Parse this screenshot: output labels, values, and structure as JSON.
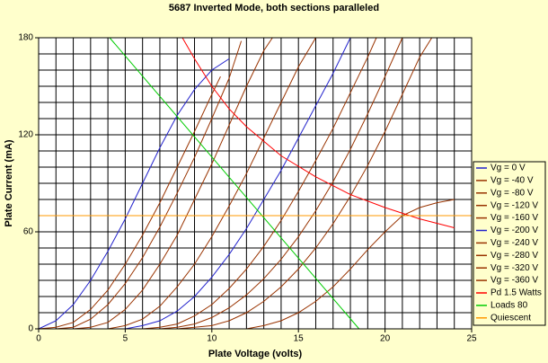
{
  "chart_data": {
    "type": "line",
    "title": "5687 Inverted Mode, both sections paralleled",
    "x_label": "Plate Voltage  (volts)",
    "y_label": "Plate Current (mA)",
    "xlim": [
      0,
      25
    ],
    "ylim": [
      0,
      180
    ],
    "xticks": [
      0,
      5,
      10,
      15,
      20,
      25
    ],
    "yticks": [
      0,
      60,
      120,
      180
    ],
    "xgrid": [
      0,
      1,
      2,
      3,
      4,
      5,
      6,
      7,
      8,
      9,
      10,
      11,
      12,
      13,
      14,
      15,
      16,
      17,
      18,
      19,
      20,
      21,
      22,
      23,
      24,
      25
    ],
    "ygrid": [
      0,
      10,
      20,
      30,
      40,
      50,
      60,
      70,
      80,
      90,
      100,
      110,
      120,
      130,
      140,
      150,
      160,
      170,
      180
    ],
    "legend": "right",
    "series": [
      {
        "name": "Vg = 0 V",
        "color": "#2222cc",
        "x": [
          0,
          1,
          2,
          3,
          4,
          5,
          6,
          7,
          8,
          9,
          10,
          11
        ],
        "values": [
          0,
          5,
          15,
          30,
          48,
          68,
          90,
          112,
          132,
          148,
          160,
          167
        ]
      },
      {
        "name": "Vg = -40 V",
        "color": "#993300",
        "x": [
          0,
          1,
          2,
          3,
          4,
          5,
          6,
          7,
          8,
          9,
          10,
          10.5
        ],
        "values": [
          0,
          1,
          4,
          12,
          24,
          40,
          58,
          78,
          100,
          122,
          145,
          156
        ]
      },
      {
        "name": "Vg = -80 V",
        "color": "#993300",
        "x": [
          1,
          2,
          3,
          4,
          5,
          6,
          7,
          8,
          9,
          10,
          11,
          11.7
        ],
        "values": [
          0,
          1,
          6,
          15,
          28,
          44,
          63,
          84,
          106,
          130,
          155,
          178
        ]
      },
      {
        "name": "Vg = -120 V",
        "color": "#993300",
        "x": [
          2,
          3,
          4,
          5,
          6,
          7,
          8,
          9,
          10,
          11,
          12,
          13,
          13.5
        ],
        "values": [
          0,
          1,
          4,
          12,
          24,
          40,
          58,
          80,
          102,
          126,
          150,
          172,
          180
        ]
      },
      {
        "name": "Vg = -160 V",
        "color": "#993300",
        "x": [
          4,
          5,
          6,
          7,
          8,
          9,
          10,
          11,
          12,
          13,
          14,
          15,
          16
        ],
        "values": [
          0,
          2,
          6,
          14,
          26,
          40,
          57,
          76,
          96,
          118,
          140,
          162,
          180
        ]
      },
      {
        "name": "Vg = -200 V",
        "color": "#2222cc",
        "x": [
          5,
          6,
          7,
          8,
          9,
          10,
          11,
          12,
          13,
          14,
          15,
          16,
          17,
          18
        ],
        "values": [
          0,
          2,
          5,
          11,
          20,
          32,
          46,
          62,
          80,
          98,
          118,
          138,
          158,
          180
        ]
      },
      {
        "name": "Vg = -240 V",
        "color": "#993300",
        "x": [
          6,
          7,
          8,
          9,
          10,
          11,
          12,
          13,
          14,
          15,
          16,
          17,
          18,
          19,
          19.5
        ],
        "values": [
          0,
          1,
          3,
          8,
          15,
          25,
          37,
          51,
          67,
          85,
          104,
          124,
          146,
          168,
          180
        ]
      },
      {
        "name": "Vg = -280 V",
        "color": "#993300",
        "x": [
          7,
          8,
          9,
          10,
          11,
          12,
          13,
          14,
          15,
          16,
          17,
          18,
          19,
          20,
          21
        ],
        "values": [
          0,
          1,
          3,
          7,
          13,
          21,
          31,
          43,
          57,
          73,
          91,
          111,
          133,
          156,
          180
        ]
      },
      {
        "name": "Vg = -320 V",
        "color": "#993300",
        "x": [
          8,
          9,
          10,
          11,
          12,
          13,
          14,
          15,
          16,
          17,
          18,
          19,
          20,
          21,
          22,
          22.7
        ],
        "values": [
          0,
          1,
          2,
          5,
          10,
          17,
          26,
          37,
          50,
          65,
          82,
          101,
          122,
          145,
          168,
          180
        ]
      },
      {
        "name": "Vg = -360 V",
        "color": "#993300",
        "x": [
          12,
          13,
          14,
          15,
          16,
          17,
          18,
          19,
          20,
          21,
          22,
          23,
          24
        ],
        "values": [
          0,
          2,
          5,
          10,
          17,
          26,
          37,
          49,
          60,
          70,
          75,
          78,
          80
        ]
      },
      {
        "name": "Pd 1.5 Watts",
        "color": "#ff0000",
        "x": [
          8.3,
          9,
          10,
          11,
          12,
          14,
          16,
          18,
          20,
          22,
          24
        ],
        "values": [
          180,
          167,
          150,
          136,
          125,
          107,
          94,
          83,
          75,
          68,
          62.5
        ]
      },
      {
        "name": "Loads 80",
        "color": "#00cc00",
        "x": [
          4.1,
          18.5
        ],
        "values": [
          180,
          0
        ]
      },
      {
        "name": "Quiescent",
        "color": "#ff9900",
        "x": [
          0,
          25
        ],
        "values": [
          70,
          70
        ]
      }
    ]
  }
}
